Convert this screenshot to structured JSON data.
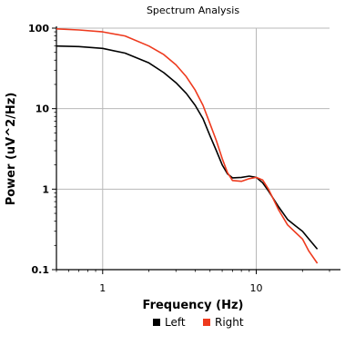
{
  "chart_data": {
    "type": "line",
    "title": "Spectrum Analysis",
    "xlabel": "Frequency (Hz)",
    "ylabel": "Power (uV^2/Hz)",
    "x_scale": "log",
    "y_scale": "log",
    "xlim": [
      0.5,
      30
    ],
    "ylim": [
      0.1,
      100
    ],
    "x_ticks": [
      1,
      10
    ],
    "x_tick_labels": [
      "1",
      "10"
    ],
    "y_ticks": [
      0.1,
      1,
      10,
      100
    ],
    "y_tick_labels": [
      "0.1",
      "1",
      "10",
      "100"
    ],
    "grid": true,
    "legend_position": "bottom",
    "series": [
      {
        "name": "Left",
        "color": "#000000",
        "x": [
          0.5,
          0.7,
          1.0,
          1.4,
          2.0,
          2.5,
          3.0,
          3.5,
          4.0,
          4.5,
          5.0,
          5.5,
          6.0,
          6.5,
          7.0,
          8.0,
          9.0,
          10.0,
          11.0,
          12.0,
          14.0,
          16.0,
          18.0,
          20.0,
          22.0,
          25.0
        ],
        "y": [
          60,
          59,
          56,
          49,
          37,
          28,
          21,
          15.5,
          11,
          7.5,
          4.6,
          3.0,
          2.0,
          1.55,
          1.38,
          1.4,
          1.45,
          1.4,
          1.2,
          0.95,
          0.6,
          0.42,
          0.35,
          0.3,
          0.24,
          0.18
        ]
      },
      {
        "name": "Right",
        "color": "#ee3a1e",
        "x": [
          0.5,
          0.7,
          1.0,
          1.4,
          2.0,
          2.5,
          3.0,
          3.5,
          4.0,
          4.5,
          5.0,
          5.5,
          6.0,
          6.5,
          7.0,
          8.0,
          9.0,
          10.0,
          11.0,
          12.0,
          14.0,
          16.0,
          18.0,
          20.0,
          22.0,
          25.0
        ],
        "y": [
          98,
          95,
          90,
          80,
          60,
          47,
          35,
          25,
          17,
          11,
          6.5,
          4.0,
          2.4,
          1.6,
          1.28,
          1.25,
          1.35,
          1.4,
          1.3,
          1.0,
          0.55,
          0.36,
          0.29,
          0.24,
          0.17,
          0.12
        ]
      }
    ]
  },
  "colors": {
    "grid": "#b8b8b8",
    "axis": "#000000",
    "background": "#ffffff"
  }
}
